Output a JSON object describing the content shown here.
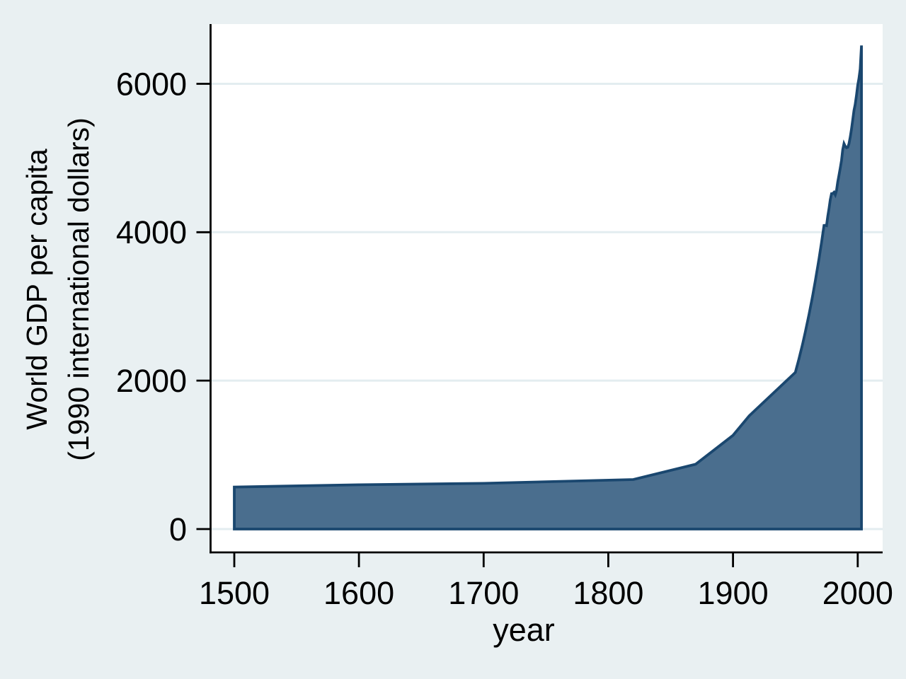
{
  "figure": {
    "background_color": "#e9f0f2",
    "plot_background_color": "#ffffff",
    "grid_color": "#e3edf0",
    "area_fill_color": "#4a6e8e",
    "area_line_color": "#1a476f",
    "axis_color": "#000000",
    "text_color": "#000000"
  },
  "chart_data": {
    "type": "area",
    "xlabel": "year",
    "ylabel": "World GDP per capita (1990 international dollars)",
    "ylabel_lines": [
      "World GDP per capita",
      "(1990 international dollars)"
    ],
    "x_ticks": [
      1500,
      1600,
      1700,
      1800,
      1900,
      2000
    ],
    "y_ticks": [
      0,
      2000,
      4000,
      6000
    ],
    "xlim": [
      1481,
      2020
    ],
    "ylim": [
      -315,
      6805
    ],
    "grid": "horizontal-only",
    "legend": "none",
    "series": [
      {
        "name": "World GDP per capita (1990 international dollars)",
        "points": [
          [
            1500,
            566
          ],
          [
            1600,
            596
          ],
          [
            1700,
            615
          ],
          [
            1820,
            667
          ],
          [
            1870,
            873
          ],
          [
            1900,
            1262
          ],
          [
            1913,
            1526
          ],
          [
            1950,
            2111
          ],
          [
            1951,
            2173
          ],
          [
            1952,
            2236
          ],
          [
            1953,
            2301
          ],
          [
            1954,
            2368
          ],
          [
            1955,
            2437
          ],
          [
            1956,
            2508
          ],
          [
            1957,
            2582
          ],
          [
            1958,
            2657
          ],
          [
            1959,
            2735
          ],
          [
            1960,
            2815
          ],
          [
            1961,
            2897
          ],
          [
            1962,
            2981
          ],
          [
            1963,
            3068
          ],
          [
            1964,
            3158
          ],
          [
            1965,
            3250
          ],
          [
            1966,
            3345
          ],
          [
            1967,
            3443
          ],
          [
            1968,
            3543
          ],
          [
            1969,
            3647
          ],
          [
            1970,
            3753
          ],
          [
            1971,
            3863
          ],
          [
            1972,
            3975
          ],
          [
            1973,
            4091
          ],
          [
            1974,
            4093
          ],
          [
            1975,
            4089
          ],
          [
            1976,
            4215
          ],
          [
            1977,
            4322
          ],
          [
            1978,
            4437
          ],
          [
            1979,
            4519
          ],
          [
            1980,
            4521
          ],
          [
            1981,
            4537
          ],
          [
            1982,
            4505
          ],
          [
            1983,
            4560
          ],
          [
            1984,
            4679
          ],
          [
            1985,
            4766
          ],
          [
            1986,
            4863
          ],
          [
            1987,
            4966
          ],
          [
            1988,
            5110
          ],
          [
            1989,
            5193
          ],
          [
            1990,
            5157
          ],
          [
            1991,
            5139
          ],
          [
            1992,
            5145
          ],
          [
            1993,
            5190
          ],
          [
            1994,
            5280
          ],
          [
            1995,
            5390
          ],
          [
            1996,
            5510
          ],
          [
            1997,
            5640
          ],
          [
            1998,
            5720
          ],
          [
            1999,
            5840
          ],
          [
            2000,
            5980
          ],
          [
            2001,
            6070
          ],
          [
            2002,
            6200
          ],
          [
            2003,
            6516
          ]
        ]
      }
    ]
  }
}
